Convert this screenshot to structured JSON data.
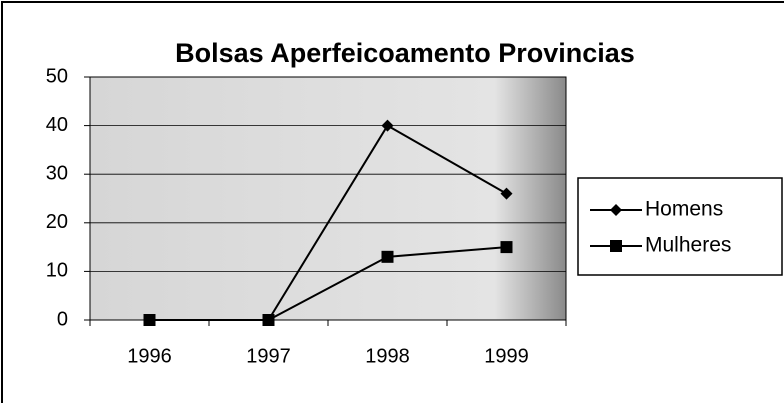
{
  "chart_data": {
    "type": "line",
    "title": "Bolsas Aperfeicoamento Provincias",
    "categories": [
      "1996",
      "1997",
      "1998",
      "1999"
    ],
    "series": [
      {
        "name": "Homens",
        "color": "#000000",
        "marker": "diamond",
        "values": [
          0,
          0,
          40,
          26
        ]
      },
      {
        "name": "Mulheres",
        "color": "#000000",
        "marker": "square",
        "values": [
          0,
          0,
          13,
          15
        ]
      }
    ],
    "ylim": [
      0,
      50
    ],
    "yticks": [
      0,
      10,
      20,
      30,
      40,
      50
    ],
    "grid": true,
    "legend": "right"
  }
}
